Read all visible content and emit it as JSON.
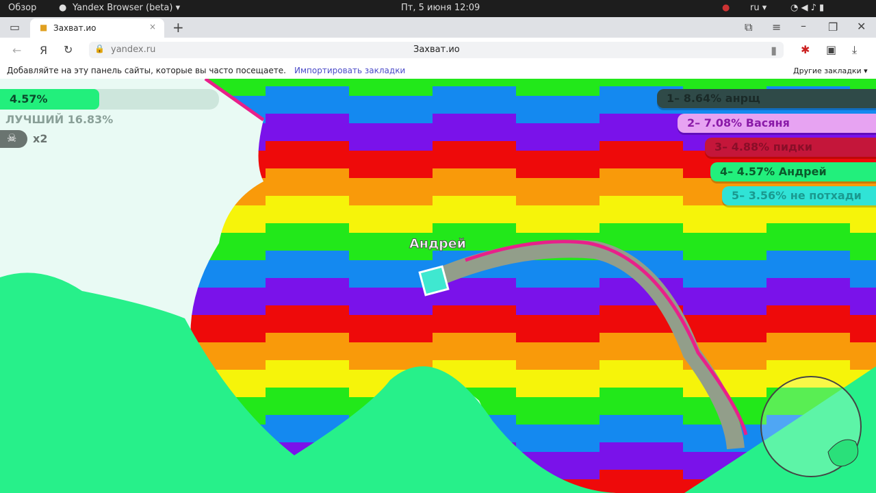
{
  "os": {
    "overview": "Обзор",
    "app": "Yandex Browser (beta) ▾",
    "datetime": "Пт, 5 июня  12:09",
    "lang": "ru ▾"
  },
  "browser": {
    "tab_title": "Захват.ио",
    "url": "yandex.ru",
    "page_title": "Захват.ио",
    "bookmarks_hint": "Добавляйте на эту панель сайты, которые вы часто посещаете.",
    "import_link": "Импортировать закладки",
    "other_bookmarks": "Другие закладки ▾"
  },
  "game": {
    "progress_label": "4.57%",
    "progress": 4.57,
    "best": "ЛУЧШИЙ 16.83%",
    "kills": "x2",
    "player_name": "Андрей",
    "leaderboard": [
      {
        "text": "1– 8.64% анрщ",
        "bg": "#2f4a48",
        "fg": "#1a2a28"
      },
      {
        "text": "2– 7.08% Васяня",
        "bg": "#e7a3f2",
        "fg": "#8a1aa8"
      },
      {
        "text": "3– 4.88% пидки",
        "bg": "#c4163a",
        "fg": "#8a0e28"
      },
      {
        "text": "4– 4.57% Андрей",
        "bg": "#22ef7c",
        "fg": "#0b5a2c"
      },
      {
        "text": "5– 3.56% не потхади",
        "bg": "#30e3d6",
        "fg": "#1a9a90"
      }
    ],
    "stripe_colors": [
      "#22e81a",
      "#1489f0",
      "#7a12ea",
      "#ee0a0a",
      "#f99a0a",
      "#f6f40a"
    ]
  }
}
